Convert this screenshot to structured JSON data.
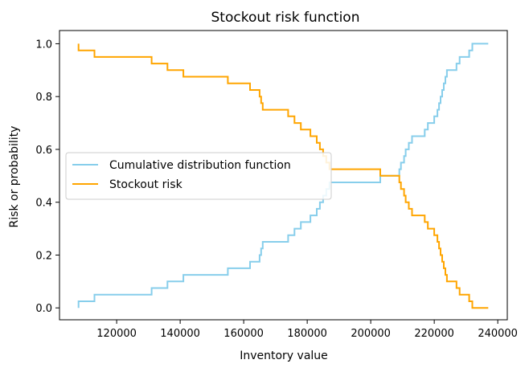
{
  "chart_data": {
    "type": "line",
    "title": "Stockout risk function",
    "xlabel": "Inventory value",
    "ylabel": "Risk or probability",
    "xlim": [
      102000,
      243000
    ],
    "ylim": [
      -0.045,
      1.05
    ],
    "xticks": [
      {
        "value": 120000,
        "label": "120000"
      },
      {
        "value": 140000,
        "label": "140000"
      },
      {
        "value": 160000,
        "label": "160000"
      },
      {
        "value": 180000,
        "label": "180000"
      },
      {
        "value": 200000,
        "label": "200000"
      },
      {
        "value": 220000,
        "label": "220000"
      },
      {
        "value": 240000,
        "label": "240000"
      }
    ],
    "yticks": [
      {
        "value": 0.0,
        "label": "0.0"
      },
      {
        "value": 0.2,
        "label": "0.2"
      },
      {
        "value": 0.4,
        "label": "0.4"
      },
      {
        "value": 0.6,
        "label": "0.6"
      },
      {
        "value": 0.8,
        "label": "0.8"
      },
      {
        "value": 1.0,
        "label": "1.0"
      }
    ],
    "grid": false,
    "legend_position": "center-left",
    "series": [
      {
        "name": "Cumulative distribution function",
        "color": "#87ceeb",
        "step": "post",
        "x": [
          108000,
          108000,
          113000,
          131000,
          136000,
          141000,
          155000,
          162000,
          165000,
          165500,
          166000,
          174000,
          176000,
          178000,
          181000,
          183000,
          184000,
          185000,
          186000,
          187000,
          188000,
          190000,
          191000,
          200000,
          203000,
          206000,
          208000,
          209000,
          209500,
          210000,
          210500,
          211000,
          212000,
          213000,
          216000,
          217000,
          218000,
          219000,
          220000,
          221000,
          221500,
          222000,
          222500,
          223000,
          223500,
          224000,
          224500,
          225000,
          227000,
          228000,
          231000,
          232000,
          237000
        ],
        "y": [
          0.0,
          0.025,
          0.05,
          0.075,
          0.1,
          0.125,
          0.15,
          0.175,
          0.2,
          0.225,
          0.25,
          0.275,
          0.3,
          0.325,
          0.35,
          0.375,
          0.4,
          0.425,
          0.45,
          0.475,
          0.475,
          0.475,
          0.475,
          0.475,
          0.5,
          0.5,
          0.5,
          0.525,
          0.55,
          0.55,
          0.575,
          0.6,
          0.625,
          0.65,
          0.65,
          0.675,
          0.7,
          0.7,
          0.725,
          0.75,
          0.775,
          0.8,
          0.825,
          0.85,
          0.875,
          0.9,
          0.9,
          0.9,
          0.925,
          0.95,
          0.975,
          1.0,
          1.0
        ]
      },
      {
        "name": "Stockout risk",
        "color": "#ffa500",
        "step": "post",
        "x": [
          108000,
          108000,
          113000,
          131000,
          136000,
          141000,
          155000,
          162000,
          165000,
          165500,
          166000,
          174000,
          176000,
          178000,
          181000,
          183000,
          184000,
          185000,
          186000,
          187000,
          188000,
          190000,
          191000,
          200000,
          203000,
          206000,
          208000,
          209000,
          209500,
          210000,
          210500,
          211000,
          212000,
          213000,
          216000,
          217000,
          218000,
          219000,
          220000,
          221000,
          221500,
          222000,
          222500,
          223000,
          223500,
          224000,
          224500,
          225000,
          227000,
          228000,
          231000,
          232000,
          237000
        ],
        "y": [
          1.0,
          0.975,
          0.95,
          0.925,
          0.9,
          0.875,
          0.85,
          0.825,
          0.8,
          0.775,
          0.75,
          0.725,
          0.7,
          0.675,
          0.65,
          0.625,
          0.6,
          0.575,
          0.55,
          0.525,
          0.525,
          0.525,
          0.525,
          0.525,
          0.5,
          0.5,
          0.5,
          0.475,
          0.45,
          0.45,
          0.425,
          0.4,
          0.375,
          0.35,
          0.35,
          0.325,
          0.3,
          0.3,
          0.275,
          0.25,
          0.225,
          0.2,
          0.175,
          0.15,
          0.125,
          0.1,
          0.1,
          0.1,
          0.075,
          0.05,
          0.025,
          0.0,
          0.0
        ]
      }
    ]
  }
}
